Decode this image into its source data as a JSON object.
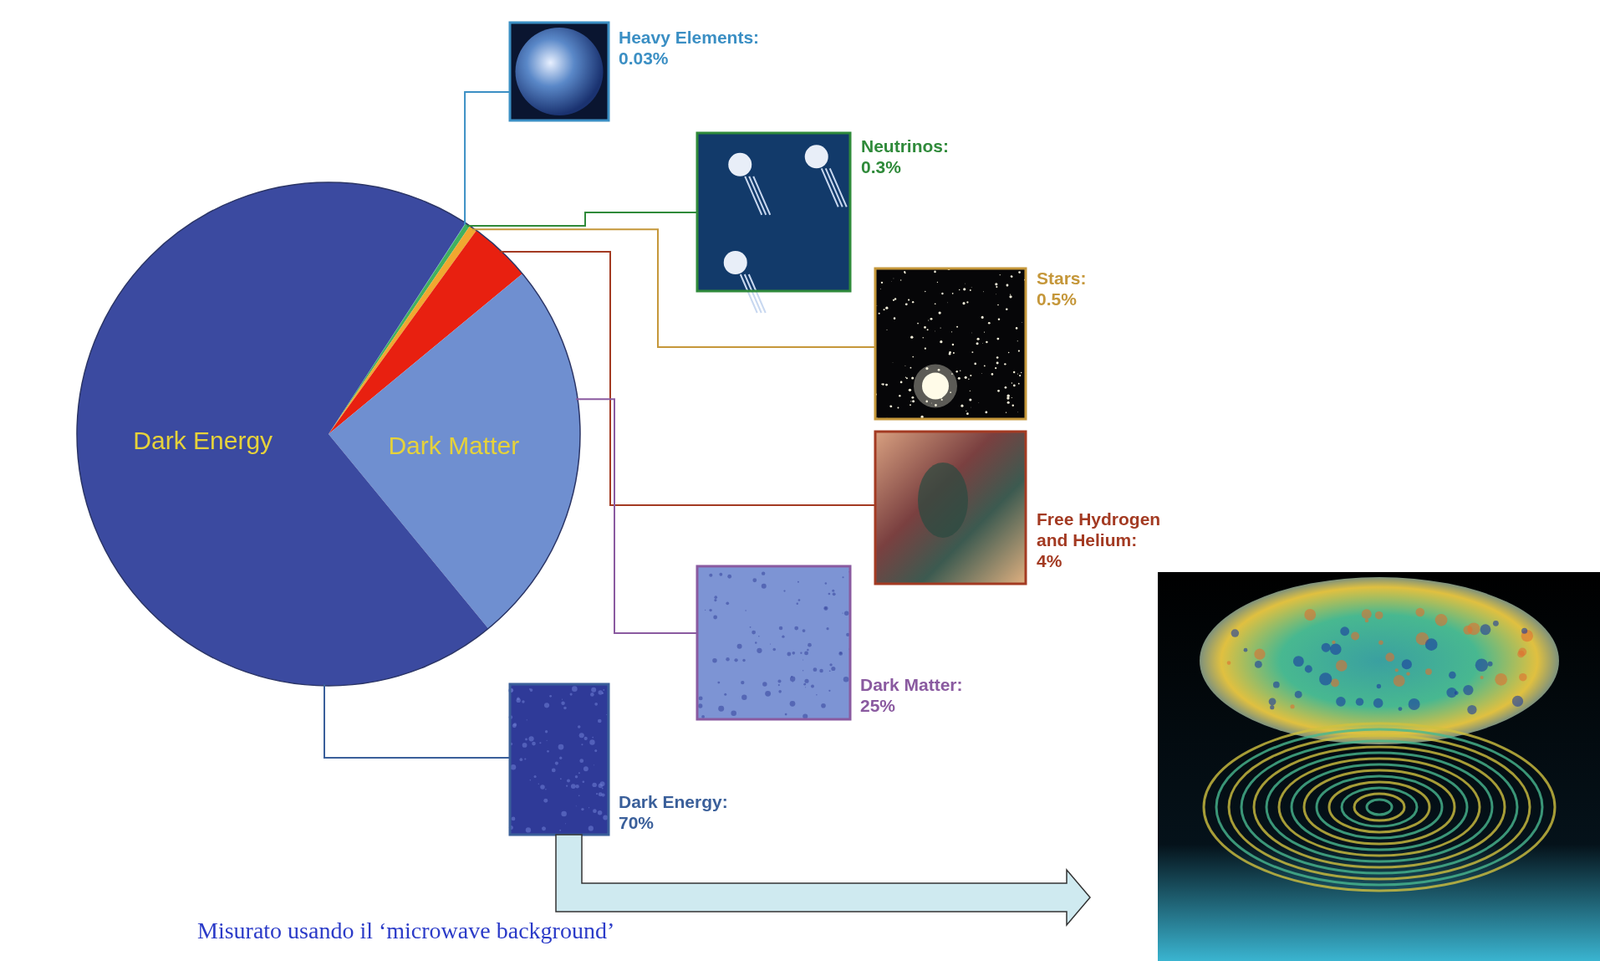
{
  "chart_data": {
    "type": "pie",
    "categories": [
      "Heavy Elements:",
      "Neutrinos:",
      "Stars:",
      "Free Hydrogen and Helium:",
      "Dark Matter:",
      "Dark Energy:"
    ],
    "values": [
      0.03,
      0.3,
      0.5,
      4,
      25,
      70
    ],
    "value_labels": [
      "0.03%",
      "0.3%",
      "0.5%",
      "4%",
      "25%",
      "70%"
    ],
    "colors": [
      "#3fb0e0",
      "#40b060",
      "#f0a830",
      "#e82010",
      "#6f8fd0",
      "#3b4aa0"
    ],
    "data_labels": true,
    "annotations": [
      {
        "text": "Dark Energy",
        "category": "Dark Energy:"
      },
      {
        "text": "Dark Matter",
        "category": "Dark Matter:"
      }
    ],
    "caption": "Misurato usando il ‘microwave background’"
  }
}
